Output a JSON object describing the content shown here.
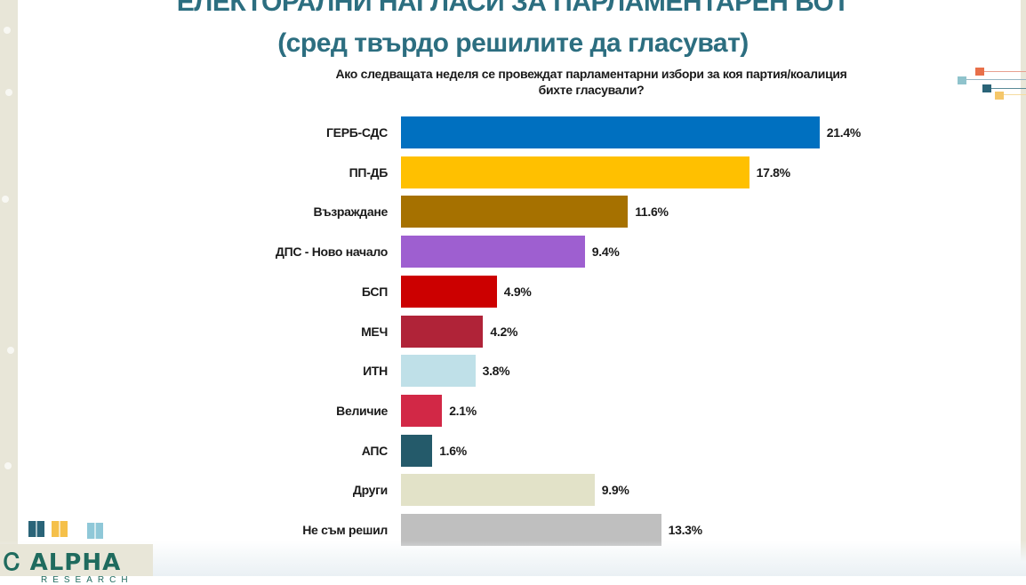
{
  "header": {
    "title_line1": "ЕЛЕКТОРАЛНИ НАГЛАСИ ЗА ПАРЛАМЕНТАРЕН ВОТ",
    "title_line2": "(сред твърдо решилите да гласуват)",
    "question_line1": "Ако следващата неделя се провеждат парламентарни избори за коя партия/коалиция",
    "question_line2": "бихте гласували?"
  },
  "bars": [
    {
      "label": "ГЕРБ-СДС",
      "value": 21.4,
      "display": "21.4%",
      "color": "#0070c0"
    },
    {
      "label": "ПП-ДБ",
      "value": 17.8,
      "display": "17.8%",
      "color": "#ffc000"
    },
    {
      "label": "Възраждане",
      "value": 11.6,
      "display": "11.6%",
      "color": "#a67100"
    },
    {
      "label": "ДПС - Ново начало",
      "value": 9.4,
      "display": "9.4%",
      "color": "#9e5fd0"
    },
    {
      "label": "БСП",
      "value": 4.9,
      "display": "4.9%",
      "color": "#cc0000"
    },
    {
      "label": "МЕЧ",
      "value": 4.2,
      "display": "4.2%",
      "color": "#b02338"
    },
    {
      "label": "ИТН",
      "value": 3.8,
      "display": "3.8%",
      "color": "#bfe0e8"
    },
    {
      "label": "Величие",
      "value": 2.1,
      "display": "2.1%",
      "color": "#d22846"
    },
    {
      "label": "АПС",
      "value": 1.6,
      "display": "1.6%",
      "color": "#245a6a"
    },
    {
      "label": "Други",
      "value": 9.9,
      "display": "9.9%",
      "color": "#e2e2c8"
    },
    {
      "label": "Не съм решил",
      "value": 13.3,
      "display": "13.3%",
      "color": "#bfbfbf"
    }
  ],
  "logo": {
    "name": "ALPHA",
    "sub": "RESEARCH"
  },
  "colors": {
    "title": "#2c6e80",
    "side_panel": "#e8e6d8",
    "deco_orange": "#e8704a",
    "deco_lightblue": "#8fc3cc",
    "deco_teal": "#2a6478",
    "deco_yellow": "#f5c76a"
  },
  "chart_data": {
    "type": "bar",
    "orientation": "horizontal",
    "title": "ЕЛЕКТОРАЛНИ НАГЛАСИ ЗА ПАРЛАМЕНТАРЕН ВОТ (сред твърдо решилите да гласуват)",
    "subtitle": "Ако следващата неделя се провеждат парламентарни избори за коя партия/коалиция бихте гласували?",
    "categories": [
      "ГЕРБ-СДС",
      "ПП-ДБ",
      "Възраждане",
      "ДПС - Ново начало",
      "БСП",
      "МЕЧ",
      "ИТН",
      "Величие",
      "АПС",
      "Други",
      "Не съм решил"
    ],
    "values": [
      21.4,
      17.8,
      11.6,
      9.4,
      4.9,
      4.2,
      3.8,
      2.1,
      1.6,
      9.9,
      13.3
    ],
    "data_labels": [
      "21.4%",
      "17.8%",
      "11.6%",
      "9.4%",
      "4.9%",
      "4.2%",
      "3.8%",
      "2.1%",
      "1.6%",
      "9.9%",
      "13.3%"
    ],
    "xlabel": "",
    "ylabel": "",
    "unit": "%",
    "grid": false,
    "legend": "none",
    "xlim": [
      0,
      22
    ]
  }
}
